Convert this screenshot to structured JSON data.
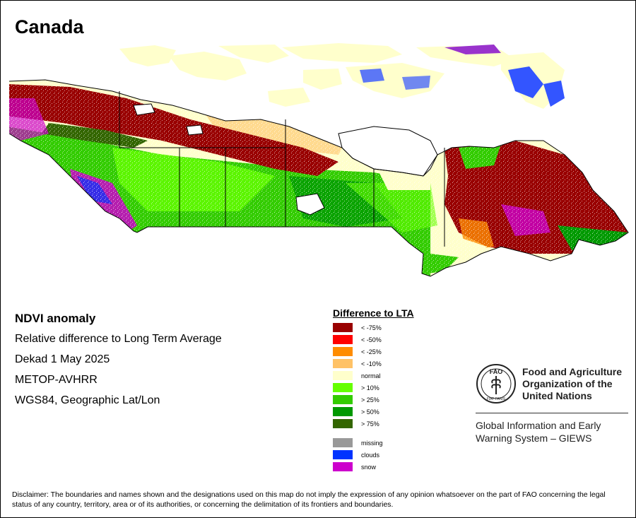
{
  "title": "Canada",
  "info": {
    "heading": "NDVI anomaly",
    "lines": [
      "Relative difference to Long Term Average",
      "Dekad 1 May 2025",
      "METOP-AVHRR",
      "WGS84, Geographic Lat/Lon"
    ]
  },
  "legend": {
    "title": "Difference to LTA",
    "items": [
      {
        "label": "< -75%",
        "color": "#990000"
      },
      {
        "label": "< -50%",
        "color": "#ff0000"
      },
      {
        "label": "< -25%",
        "color": "#ff8c00"
      },
      {
        "label": "< -10%",
        "color": "#ffc266"
      },
      {
        "label": "normal",
        "color": "#ffffcc"
      },
      {
        "label": "> 10%",
        "color": "#66ff00"
      },
      {
        "label": "> 25%",
        "color": "#33cc00"
      },
      {
        "label": "> 50%",
        "color": "#009900"
      },
      {
        "label": "> 75%",
        "color": "#336600"
      }
    ],
    "extra": [
      {
        "label": "missing",
        "color": "#999999"
      },
      {
        "label": "clouds",
        "color": "#0033ff"
      },
      {
        "label": "snow",
        "color": "#cc00cc"
      }
    ]
  },
  "fao": {
    "name_lines": [
      "Food and Agriculture",
      "Organization of the",
      "United Nations"
    ],
    "logo_text": "FAO",
    "logo_motto": "FIAT PANIS",
    "giews_lines": [
      "Global Information and Early",
      "Warning System – GIEWS"
    ]
  },
  "disclaimer": "Disclaimer: The boundaries and names shown and the designations used on this map do not imply the expression of any opinion whatsoever on the part of FAO concerning the legal status of any country, territory, area or of its authorities, or concerning the delimitation of its frontiers and boundaries."
}
